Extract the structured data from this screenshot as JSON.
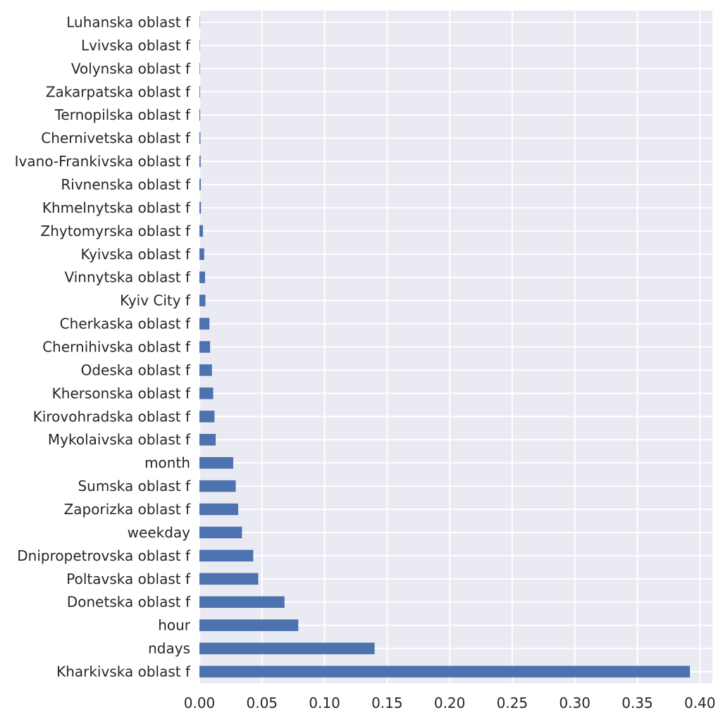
{
  "chart_data": {
    "type": "bar",
    "orientation": "horizontal",
    "title": "",
    "xlabel": "",
    "ylabel": "",
    "xlim": [
      0,
      0.41
    ],
    "x_ticks": [
      "0.00",
      "0.05",
      "0.10",
      "0.15",
      "0.20",
      "0.25",
      "0.30",
      "0.35",
      "0.40"
    ],
    "grid": true,
    "legend": "none",
    "colors": {
      "bar": "#4c72b0",
      "plot_background": "#eaeaf2",
      "grid": "#ffffff",
      "text": "#262626"
    },
    "categories": [
      "Kharkivska oblast f",
      "ndays",
      "hour",
      "Donetska oblast f",
      "Poltavska oblast f",
      "Dnipropetrovska oblast f",
      "weekday",
      "Zaporizka oblast f",
      "Sumska oblast f",
      "month",
      "Mykolaivska oblast f",
      "Kirovohradska oblast f",
      "Khersonska oblast f",
      "Odeska oblast f",
      "Chernihivska oblast f",
      "Cherkaska oblast f",
      "Kyiv City f",
      "Vinnytska oblast f",
      "Kyivska oblast f",
      "Zhytomyrska oblast f",
      "Khmelnytska oblast f",
      "Rivnenska oblast f",
      "Ivano-Frankivska oblast f",
      "Chernivetska oblast f",
      "Ternopilska oblast f",
      "Zakarpatska oblast f",
      "Volynska oblast f",
      "Lvivska oblast f",
      "Luhanska oblast f"
    ],
    "values": [
      0.392,
      0.14,
      0.079,
      0.068,
      0.047,
      0.043,
      0.034,
      0.031,
      0.029,
      0.027,
      0.013,
      0.012,
      0.011,
      0.01,
      0.0085,
      0.008,
      0.0048,
      0.0045,
      0.0038,
      0.0028,
      0.0012,
      0.0011,
      0.001,
      0.0008,
      0.0006,
      0.0005,
      0.0004,
      0.0003,
      0.0002
    ]
  }
}
